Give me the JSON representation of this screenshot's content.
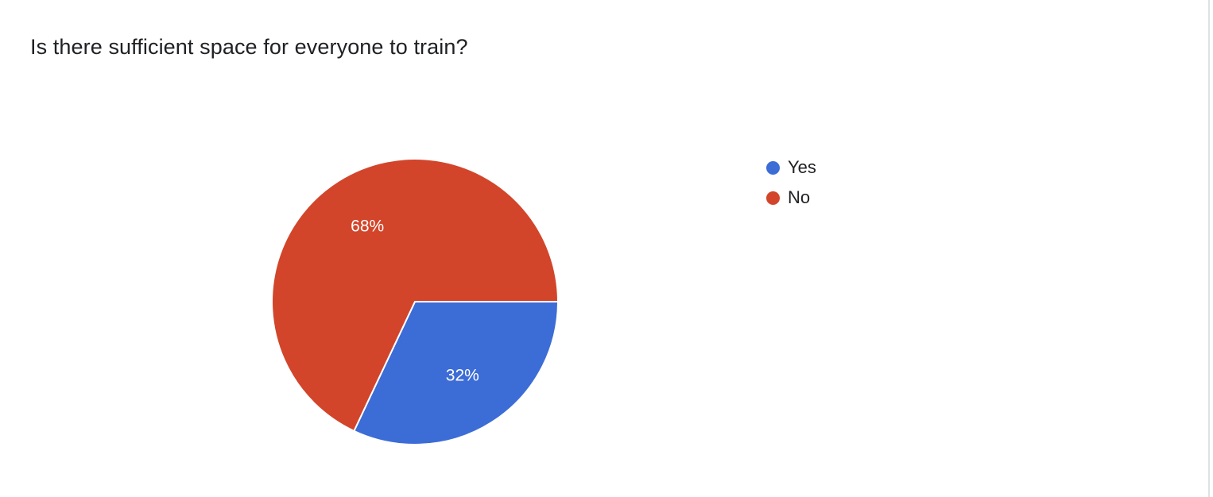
{
  "chart_data": {
    "type": "pie",
    "title": "Is there sufficient space for everyone to train?",
    "categories": [
      "Yes",
      "No"
    ],
    "values": [
      32,
      68
    ],
    "display_labels": [
      "32%",
      "68%"
    ],
    "colors": [
      "#3c6cd6",
      "#d2452a"
    ],
    "legend_position": "right",
    "start_angle_deg": 0,
    "direction": "clockwise",
    "slice_border_color": "#ffffff"
  }
}
